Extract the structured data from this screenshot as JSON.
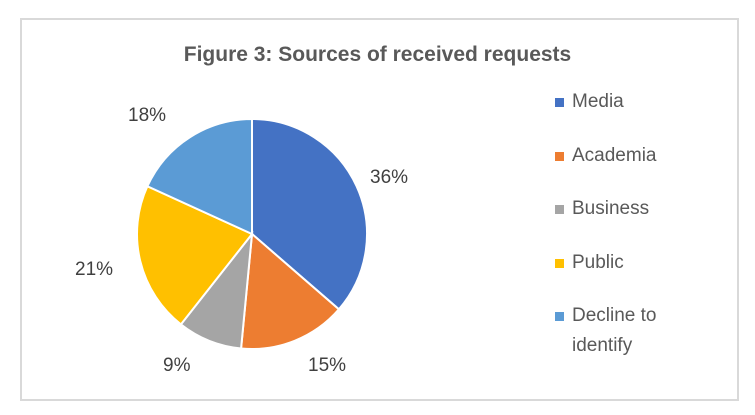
{
  "chart_data": {
    "type": "pie",
    "title": "Figure 3: Sources of received requests",
    "categories": [
      "Media",
      "Academia",
      "Business",
      "Public",
      "Decline to identify"
    ],
    "values": [
      36,
      15,
      9,
      21,
      18
    ],
    "labels": [
      "36%",
      "15%",
      "9%",
      "21%",
      "18%"
    ],
    "colors": [
      "#4472c4",
      "#ed7d31",
      "#a5a5a5",
      "#ffc000",
      "#5b9bd5"
    ],
    "legend_position": "right",
    "start_angle": "12 o'clock, clockwise"
  }
}
